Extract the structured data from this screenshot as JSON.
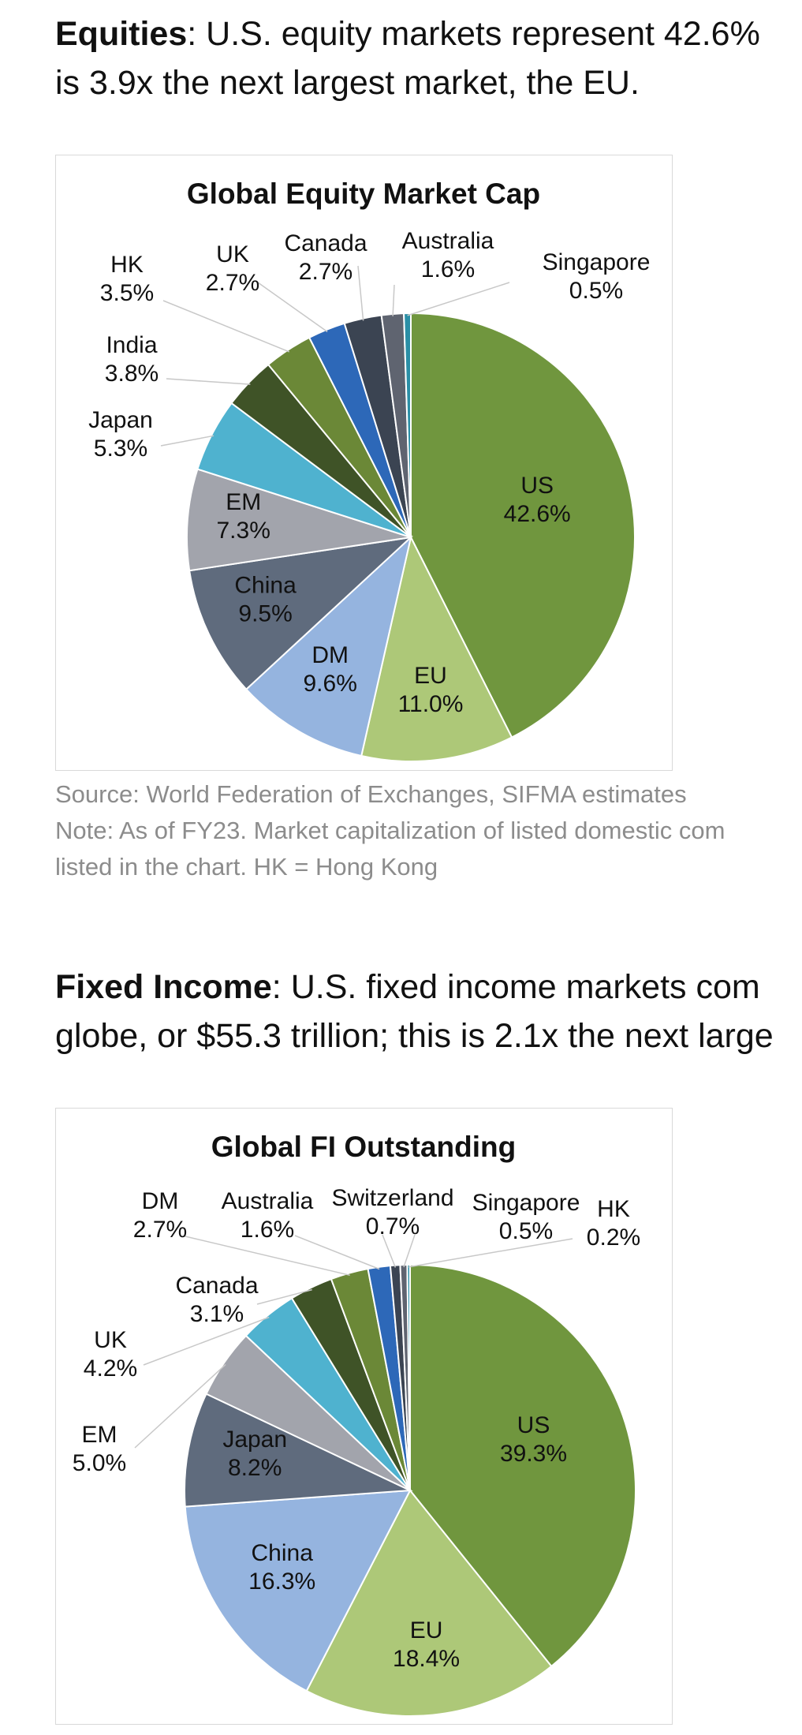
{
  "paragraphs": {
    "equities": {
      "heading": "Equities",
      "line1": ": U.S. equity markets represent 42.6%",
      "line2": "is 3.9x the next largest market, the EU."
    },
    "fixed_income": {
      "heading": "Fixed Income",
      "line1": ": U.S. fixed income markets com",
      "line2": "globe, or $55.3 trillion; this is 2.1x the next large"
    }
  },
  "notes": {
    "source": "Source: World Federation of Exchanges, SIFMA estimates",
    "note_line1": "Note: As of FY23. Market capitalization of listed domestic com",
    "note_line2": "listed in the chart. HK = Hong Kong"
  },
  "chart_data": [
    {
      "type": "pie",
      "title": "Global Equity Market Cap",
      "slices": [
        {
          "label": "US",
          "value": 42.6,
          "value_label": "42.6%",
          "color": "#70963e"
        },
        {
          "label": "EU",
          "value": 11.0,
          "value_label": "11.0%",
          "color": "#adc878"
        },
        {
          "label": "DM",
          "value": 9.6,
          "value_label": "9.6%",
          "color": "#95b4df"
        },
        {
          "label": "China",
          "value": 9.5,
          "value_label": "9.5%",
          "color": "#5f6b7d"
        },
        {
          "label": "EM",
          "value": 7.3,
          "value_label": "7.3%",
          "color": "#a2a4ac"
        },
        {
          "label": "Japan",
          "value": 5.3,
          "value_label": "5.3%",
          "color": "#4fb2cf"
        },
        {
          "label": "India",
          "value": 3.8,
          "value_label": "3.8%",
          "color": "#3f5327"
        },
        {
          "label": "HK",
          "value": 3.5,
          "value_label": "3.5%",
          "color": "#6b8837"
        },
        {
          "label": "UK",
          "value": 2.7,
          "value_label": "2.7%",
          "color": "#2d68b8"
        },
        {
          "label": "Canada",
          "value": 2.7,
          "value_label": "2.7%",
          "color": "#3b4452"
        },
        {
          "label": "Australia",
          "value": 1.6,
          "value_label": "1.6%",
          "color": "#5f6470"
        },
        {
          "label": "Singapore",
          "value": 0.5,
          "value_label": "0.5%",
          "color": "#2a8fa6"
        }
      ]
    },
    {
      "type": "pie",
      "title": "Global FI Outstanding",
      "slices": [
        {
          "label": "US",
          "value": 39.3,
          "value_label": "39.3%",
          "color": "#70963e"
        },
        {
          "label": "EU",
          "value": 18.4,
          "value_label": "18.4%",
          "color": "#adc878"
        },
        {
          "label": "China",
          "value": 16.3,
          "value_label": "16.3%",
          "color": "#95b4df"
        },
        {
          "label": "Japan",
          "value": 8.2,
          "value_label": "8.2%",
          "color": "#5f6b7d"
        },
        {
          "label": "EM",
          "value": 5.0,
          "value_label": "5.0%",
          "color": "#a2a4ac"
        },
        {
          "label": "UK",
          "value": 4.2,
          "value_label": "4.2%",
          "color": "#4fb2cf"
        },
        {
          "label": "Canada",
          "value": 3.1,
          "value_label": "3.1%",
          "color": "#3f5327"
        },
        {
          "label": "DM",
          "value": 2.7,
          "value_label": "2.7%",
          "color": "#6b8837"
        },
        {
          "label": "Australia",
          "value": 1.6,
          "value_label": "1.6%",
          "color": "#2d68b8"
        },
        {
          "label": "Switzerland",
          "value": 0.7,
          "value_label": "0.7%",
          "color": "#3b4452"
        },
        {
          "label": "Singapore",
          "value": 0.5,
          "value_label": "0.5%",
          "color": "#5f6470"
        },
        {
          "label": "HK",
          "value": 0.2,
          "value_label": "0.2%",
          "color": "#2a8fa6"
        }
      ]
    }
  ]
}
